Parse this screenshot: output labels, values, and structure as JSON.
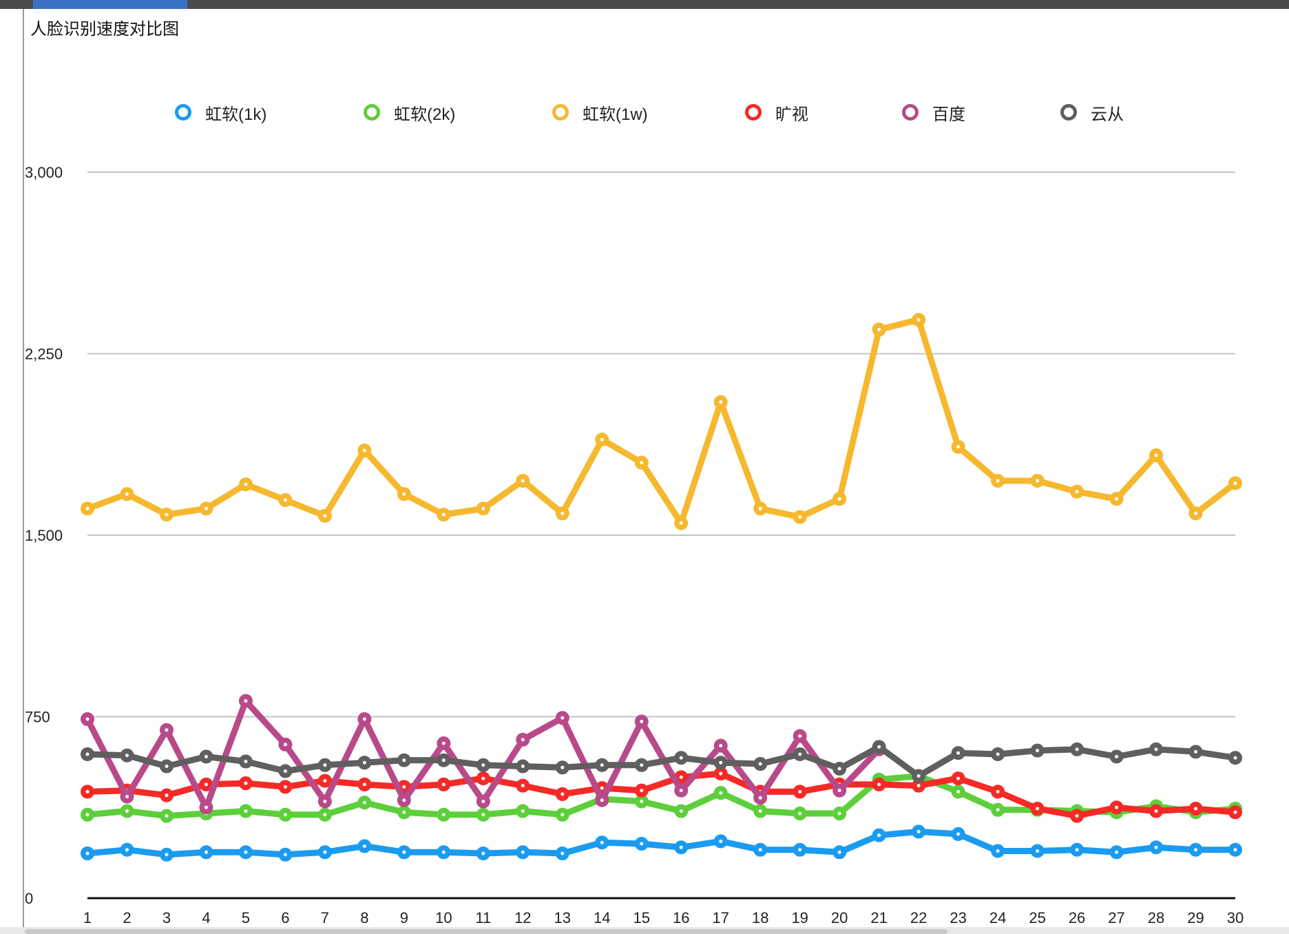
{
  "chart_data": {
    "type": "line",
    "title": "人脸识别速度对比图",
    "xlabel": "",
    "ylabel": "",
    "ylim": [
      0,
      3000
    ],
    "yticks": [
      0,
      750,
      1500,
      2250,
      3000
    ],
    "ytick_labels": [
      "0",
      "750",
      "1,500",
      "2,250",
      "3,000"
    ],
    "legend_position": "top",
    "grid": true,
    "x": [
      1,
      2,
      3,
      4,
      5,
      6,
      7,
      8,
      9,
      10,
      11,
      12,
      13,
      14,
      15,
      16,
      17,
      18,
      19,
      20,
      21,
      22,
      23,
      24,
      25,
      26,
      27,
      28,
      29,
      30
    ],
    "x_labels": [
      "1",
      "2",
      "3",
      "4",
      "5",
      "6",
      "7",
      "8",
      "9",
      "10",
      "11",
      "12",
      "13",
      "14",
      "15",
      "16",
      "17",
      "18",
      "19",
      "20",
      "21",
      "22",
      "23",
      "24",
      "25",
      "26",
      "27",
      "28",
      "29",
      "30"
    ],
    "series": [
      {
        "name": "虹软(1k)",
        "color": "#1a9bf0",
        "values": [
          185,
          200,
          180,
          190,
          190,
          180,
          190,
          215,
          190,
          190,
          185,
          190,
          185,
          230,
          225,
          210,
          235,
          200,
          200,
          190,
          260,
          275,
          265,
          195,
          195,
          200,
          190,
          210,
          200,
          200
        ]
      },
      {
        "name": "虹软(2k)",
        "color": "#5ccf3a",
        "values": [
          345,
          360,
          340,
          350,
          360,
          345,
          345,
          395,
          355,
          345,
          345,
          360,
          345,
          410,
          400,
          360,
          435,
          360,
          350,
          350,
          490,
          505,
          440,
          365,
          365,
          360,
          355,
          380,
          355,
          370
        ]
      },
      {
        "name": "虹软(1w)",
        "color": "#f5b82e",
        "values": [
          1610,
          1670,
          1585,
          1610,
          1710,
          1645,
          1580,
          1850,
          1670,
          1585,
          1610,
          1725,
          1590,
          1895,
          1800,
          1550,
          2050,
          1610,
          1575,
          1650,
          2350,
          2390,
          1865,
          1725,
          1725,
          1680,
          1650,
          1830,
          1590,
          1715
        ]
      },
      {
        "name": "旷视",
        "color": "#f52a26",
        "values": [
          440,
          445,
          425,
          470,
          475,
          460,
          485,
          470,
          460,
          470,
          495,
          465,
          430,
          455,
          445,
          500,
          515,
          440,
          440,
          470,
          470,
          465,
          495,
          440,
          370,
          340,
          375,
          360,
          370,
          355
        ]
      },
      {
        "name": "百度",
        "color": "#b84a8a",
        "values": [
          740,
          420,
          695,
          375,
          815,
          635,
          400,
          740,
          405,
          640,
          400,
          655,
          745,
          405,
          730,
          445,
          630,
          415,
          670,
          445,
          615,
          null,
          null,
          null,
          null,
          null,
          null,
          null,
          null,
          null
        ]
      },
      {
        "name": "云从",
        "color": "#5f5f5f",
        "values": [
          595,
          590,
          545,
          585,
          565,
          525,
          550,
          560,
          570,
          570,
          550,
          545,
          540,
          550,
          550,
          580,
          560,
          555,
          595,
          535,
          625,
          505,
          600,
          595,
          610,
          615,
          585,
          615,
          605,
          580
        ]
      }
    ]
  }
}
